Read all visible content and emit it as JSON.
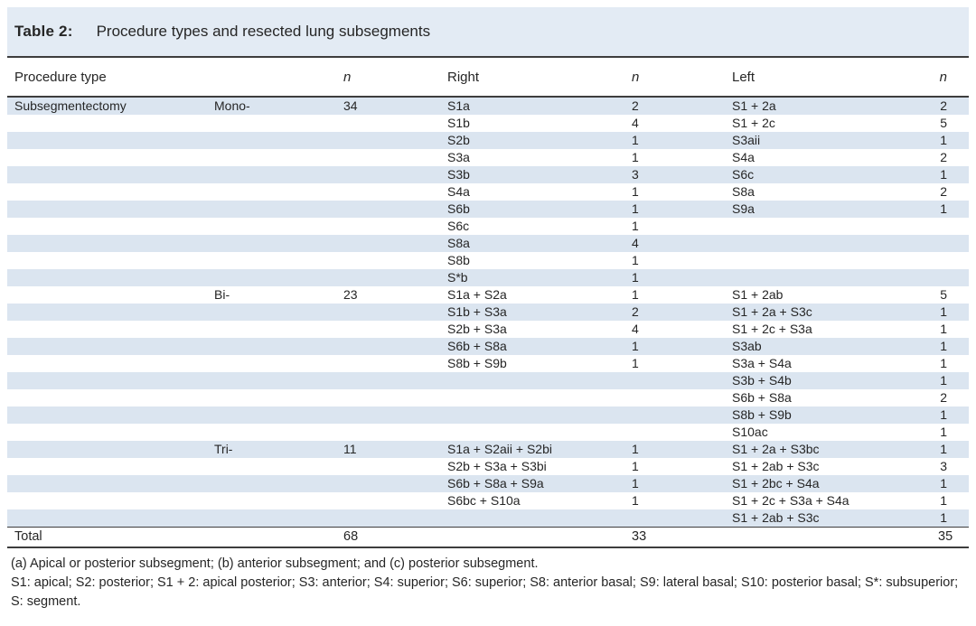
{
  "title": {
    "label": "Table 2:",
    "text": "Procedure types and resected lung subsegments"
  },
  "table": {
    "columns": {
      "procedure_type": "Procedure type",
      "subtype": "",
      "n1": "n",
      "right": "Right",
      "n2": "n",
      "left": "Left",
      "n3": "n"
    },
    "rows": [
      {
        "proc": "Subsegmentectomy",
        "sub": "Mono-",
        "n1": "34",
        "right": "S1a",
        "n2": "2",
        "left": "S1 + 2a",
        "n3": "2",
        "shaded": true
      },
      {
        "proc": "",
        "sub": "",
        "n1": "",
        "right": "S1b",
        "n2": "4",
        "left": "S1 + 2c",
        "n3": "5",
        "shaded": false
      },
      {
        "proc": "",
        "sub": "",
        "n1": "",
        "right": "S2b",
        "n2": "1",
        "left": "S3aii",
        "n3": "1",
        "shaded": true
      },
      {
        "proc": "",
        "sub": "",
        "n1": "",
        "right": "S3a",
        "n2": "1",
        "left": "S4a",
        "n3": "2",
        "shaded": false
      },
      {
        "proc": "",
        "sub": "",
        "n1": "",
        "right": "S3b",
        "n2": "3",
        "left": "S6c",
        "n3": "1",
        "shaded": true
      },
      {
        "proc": "",
        "sub": "",
        "n1": "",
        "right": "S4a",
        "n2": "1",
        "left": "S8a",
        "n3": "2",
        "shaded": false
      },
      {
        "proc": "",
        "sub": "",
        "n1": "",
        "right": "S6b",
        "n2": "1",
        "left": "S9a",
        "n3": "1",
        "shaded": true
      },
      {
        "proc": "",
        "sub": "",
        "n1": "",
        "right": "S6c",
        "n2": "1",
        "left": "",
        "n3": "",
        "shaded": false
      },
      {
        "proc": "",
        "sub": "",
        "n1": "",
        "right": "S8a",
        "n2": "4",
        "left": "",
        "n3": "",
        "shaded": true
      },
      {
        "proc": "",
        "sub": "",
        "n1": "",
        "right": "S8b",
        "n2": "1",
        "left": "",
        "n3": "",
        "shaded": false
      },
      {
        "proc": "",
        "sub": "",
        "n1": "",
        "right": "S*b",
        "n2": "1",
        "left": "",
        "n3": "",
        "shaded": true
      },
      {
        "proc": "",
        "sub": "Bi-",
        "n1": "23",
        "right": "S1a + S2a",
        "n2": "1",
        "left": "S1 + 2ab",
        "n3": "5",
        "shaded": false
      },
      {
        "proc": "",
        "sub": "",
        "n1": "",
        "right": "S1b + S3a",
        "n2": "2",
        "left": "S1 + 2a + S3c",
        "n3": "1",
        "shaded": true
      },
      {
        "proc": "",
        "sub": "",
        "n1": "",
        "right": "S2b + S3a",
        "n2": "4",
        "left": "S1 + 2c + S3a",
        "n3": "1",
        "shaded": false
      },
      {
        "proc": "",
        "sub": "",
        "n1": "",
        "right": "S6b + S8a",
        "n2": "1",
        "left": "S3ab",
        "n3": "1",
        "shaded": true
      },
      {
        "proc": "",
        "sub": "",
        "n1": "",
        "right": "S8b + S9b",
        "n2": "1",
        "left": "S3a + S4a",
        "n3": "1",
        "shaded": false
      },
      {
        "proc": "",
        "sub": "",
        "n1": "",
        "right": "",
        "n2": "",
        "left": "S3b + S4b",
        "n3": "1",
        "shaded": true
      },
      {
        "proc": "",
        "sub": "",
        "n1": "",
        "right": "",
        "n2": "",
        "left": "S6b + S8a",
        "n3": "2",
        "shaded": false
      },
      {
        "proc": "",
        "sub": "",
        "n1": "",
        "right": "",
        "n2": "",
        "left": "S8b + S9b",
        "n3": "1",
        "shaded": true
      },
      {
        "proc": "",
        "sub": "",
        "n1": "",
        "right": "",
        "n2": "",
        "left": "S10ac",
        "n3": "1",
        "shaded": false
      },
      {
        "proc": "",
        "sub": "Tri-",
        "n1": "11",
        "right": "S1a + S2aii + S2bi",
        "n2": "1",
        "left": "S1 + 2a + S3bc",
        "n3": "1",
        "shaded": true
      },
      {
        "proc": "",
        "sub": "",
        "n1": "",
        "right": "S2b + S3a + S3bi",
        "n2": "1",
        "left": "S1 + 2ab + S3c",
        "n3": "3",
        "shaded": false
      },
      {
        "proc": "",
        "sub": "",
        "n1": "",
        "right": "S6b + S8a + S9a",
        "n2": "1",
        "left": "S1 + 2bc + S4a",
        "n3": "1",
        "shaded": true
      },
      {
        "proc": "",
        "sub": "",
        "n1": "",
        "right": "S6bc + S10a",
        "n2": "1",
        "left": "S1 + 2c + S3a + S4a",
        "n3": "1",
        "shaded": false
      },
      {
        "proc": "",
        "sub": "",
        "n1": "",
        "right": "",
        "n2": "",
        "left": "S1 + 2ab + S3c",
        "n3": "1",
        "shaded": true
      }
    ],
    "total": {
      "proc": "Total",
      "sub": "",
      "n1": "68",
      "right": "",
      "n2": "33",
      "left": "",
      "n3": "35"
    }
  },
  "footnotes": {
    "line1": "(a) Apical or posterior subsegment; (b) anterior subsegment; and (c) posterior subsegment.",
    "line2": "S1: apical; S2: posterior; S1 + 2: apical posterior; S3: anterior; S4: superior; S6: superior; S8: anterior basal; S9: lateral basal; S10: posterior basal; S*: subsuperior; S: segment."
  },
  "colors": {
    "band_bg": "#e3ebf4",
    "row_shade": "#dbe5f0",
    "rule": "#3d3d3d",
    "text": "#262626"
  }
}
